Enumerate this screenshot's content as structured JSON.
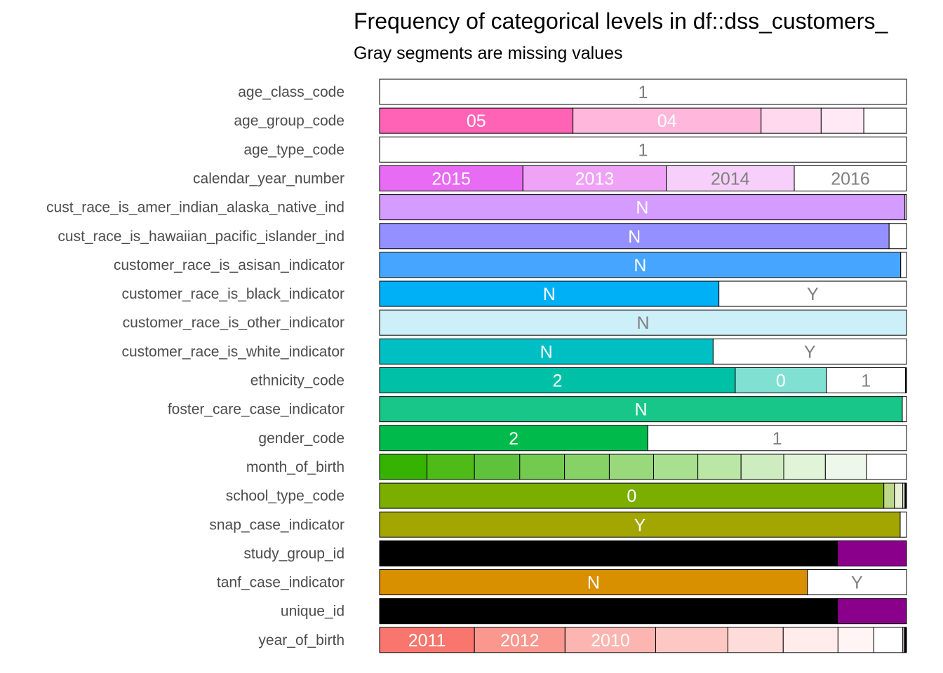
{
  "chart_data": {
    "type": "bar",
    "stacked": "proportional",
    "title": "Frequency of categorical levels in df::dss_customers_",
    "subtitle": "Gray segments are missing values",
    "rows": [
      {
        "name": "age_class_code",
        "segments": [
          {
            "level": "1",
            "value": 1.0,
            "color": "#ffffff",
            "label_color": "#7f7f7f"
          }
        ]
      },
      {
        "name": "age_group_code",
        "segments": [
          {
            "level": "05",
            "value": 0.367,
            "color": "#ff63b6",
            "label_color": "#ffffff"
          },
          {
            "level": "04",
            "value": 0.357,
            "color": "#ffb8dc",
            "label_color": "#ffffff"
          },
          {
            "level": "",
            "value": 0.114,
            "color": "#ffd9ee"
          },
          {
            "level": "",
            "value": 0.081,
            "color": "#ffe9f5"
          },
          {
            "level": "",
            "value": 0.081,
            "color": "#ffffff"
          }
        ]
      },
      {
        "name": "age_type_code",
        "segments": [
          {
            "level": "1",
            "value": 1.0,
            "color": "#ffffff",
            "label_color": "#7f7f7f"
          }
        ]
      },
      {
        "name": "calendar_year_number",
        "segments": [
          {
            "level": "2015",
            "value": 0.272,
            "color": "#e76bf3",
            "label_color": "#ffffff"
          },
          {
            "level": "2013",
            "value": 0.272,
            "color": "#efa3f6",
            "label_color": "#ffffff"
          },
          {
            "level": "2014",
            "value": 0.243,
            "color": "#f6d0fa",
            "label_color": "#7f7f7f"
          },
          {
            "level": "2016",
            "value": 0.213,
            "color": "#ffffff",
            "label_color": "#7f7f7f"
          }
        ]
      },
      {
        "name": "cust_race_is_amer_indian_alaska_native_ind",
        "segments": [
          {
            "level": "N",
            "value": 0.997,
            "color": "#d59cff",
            "label_color": "#ffffff"
          },
          {
            "level": "",
            "value": 0.003,
            "color": "#ffffff"
          }
        ]
      },
      {
        "name": "cust_race_is_hawaiian_pacific_islander_ind",
        "segments": [
          {
            "level": "N",
            "value": 0.967,
            "color": "#9590ff",
            "label_color": "#ffffff"
          },
          {
            "level": "",
            "value": 0.033,
            "color": "#ffffff"
          }
        ]
      },
      {
        "name": "customer_race_is_asisan_indicator",
        "segments": [
          {
            "level": "N",
            "value": 0.989,
            "color": "#45a5ff",
            "label_color": "#ffffff"
          },
          {
            "level": "",
            "value": 0.011,
            "color": "#ffffff"
          }
        ]
      },
      {
        "name": "customer_race_is_black_indicator",
        "segments": [
          {
            "level": "N",
            "value": 0.644,
            "color": "#00b0f6",
            "label_color": "#ffffff"
          },
          {
            "level": "Y",
            "value": 0.356,
            "color": "#ffffff",
            "label_color": "#7f7f7f"
          }
        ]
      },
      {
        "name": "customer_race_is_other_indicator",
        "segments": [
          {
            "level": "N",
            "value": 1.0,
            "color": "#cdeff8",
            "label_color": "#7f7f7f"
          }
        ]
      },
      {
        "name": "customer_race_is_white_indicator",
        "segments": [
          {
            "level": "N",
            "value": 0.633,
            "color": "#00bfc4",
            "label_color": "#ffffff"
          },
          {
            "level": "Y",
            "value": 0.367,
            "color": "#ffffff",
            "label_color": "#7f7f7f"
          }
        ]
      },
      {
        "name": "ethnicity_code",
        "segments": [
          {
            "level": "2",
            "value": 0.675,
            "color": "#00c0a5",
            "label_color": "#ffffff"
          },
          {
            "level": "0",
            "value": 0.173,
            "color": "#80e0d2",
            "label_color": "#ffffff"
          },
          {
            "level": "1",
            "value": 0.15,
            "color": "#ffffff",
            "label_color": "#7f7f7f"
          },
          {
            "level": "",
            "value": 0.002,
            "color": "#000000"
          }
        ]
      },
      {
        "name": "foster_care_case_indicator",
        "segments": [
          {
            "level": "N",
            "value": 0.992,
            "color": "#19c689",
            "label_color": "#ffffff"
          },
          {
            "level": "",
            "value": 0.008,
            "color": "#ffffff"
          }
        ]
      },
      {
        "name": "gender_code",
        "segments": [
          {
            "level": "2",
            "value": 0.509,
            "color": "#00ba4c",
            "label_color": "#ffffff"
          },
          {
            "level": "1",
            "value": 0.491,
            "color": "#ffffff",
            "label_color": "#7f7f7f"
          }
        ]
      },
      {
        "name": "month_of_birth",
        "segments": [
          {
            "level": "",
            "value": 0.09,
            "color": "#35b300"
          },
          {
            "level": "",
            "value": 0.09,
            "color": "#4fbb19"
          },
          {
            "level": "",
            "value": 0.086,
            "color": "#5ec23c"
          },
          {
            "level": "",
            "value": 0.085,
            "color": "#72ca4e"
          },
          {
            "level": "",
            "value": 0.085,
            "color": "#87d266"
          },
          {
            "level": "",
            "value": 0.084,
            "color": "#99d97b"
          },
          {
            "level": "",
            "value": 0.084,
            "color": "#a8e090"
          },
          {
            "level": "",
            "value": 0.082,
            "color": "#bae6a6"
          },
          {
            "level": "",
            "value": 0.081,
            "color": "#cdedc0"
          },
          {
            "level": "",
            "value": 0.079,
            "color": "#e0f4d7"
          },
          {
            "level": "",
            "value": 0.078,
            "color": "#eef8ea"
          },
          {
            "level": "",
            "value": 0.076,
            "color": "#ffffff"
          }
        ]
      },
      {
        "name": "school_type_code",
        "segments": [
          {
            "level": "0",
            "value": 0.957,
            "color": "#7cae00",
            "label_color": "#ffffff"
          },
          {
            "level": "",
            "value": 0.02,
            "color": "#bed88a"
          },
          {
            "level": "",
            "value": 0.016,
            "color": "#e7f0d2"
          },
          {
            "level": "",
            "value": 0.004,
            "color": "#ffffff"
          },
          {
            "level": "",
            "value": 0.003,
            "color": "#000000"
          }
        ]
      },
      {
        "name": "snap_case_indicator",
        "segments": [
          {
            "level": "Y",
            "value": 0.988,
            "color": "#a3a500",
            "label_color": "#ffffff"
          },
          {
            "level": "",
            "value": 0.012,
            "color": "#ffffff"
          }
        ]
      },
      {
        "name": "study_group_id",
        "segments": [
          {
            "level": "",
            "value": 0.869,
            "color": "#000000"
          },
          {
            "level": "",
            "value": 0.131,
            "color": "#8b008b"
          }
        ]
      },
      {
        "name": "tanf_case_indicator",
        "segments": [
          {
            "level": "N",
            "value": 0.812,
            "color": "#d89000",
            "label_color": "#ffffff"
          },
          {
            "level": "Y",
            "value": 0.188,
            "color": "#ffffff",
            "label_color": "#7f7f7f"
          }
        ]
      },
      {
        "name": "unique_id",
        "segments": [
          {
            "level": "",
            "value": 0.869,
            "color": "#000000"
          },
          {
            "level": "",
            "value": 0.131,
            "color": "#8b008b"
          }
        ]
      },
      {
        "name": "year_of_birth",
        "segments": [
          {
            "level": "2011",
            "value": 0.18,
            "color": "#f8766d",
            "label_color": "#ffffff"
          },
          {
            "level": "2012",
            "value": 0.172,
            "color": "#fa978f",
            "label_color": "#ffffff"
          },
          {
            "level": "2010",
            "value": 0.172,
            "color": "#fcb5b0",
            "label_color": "#ffffff"
          },
          {
            "level": "",
            "value": 0.137,
            "color": "#fdc8c4"
          },
          {
            "level": "",
            "value": 0.105,
            "color": "#fedcda"
          },
          {
            "level": "",
            "value": 0.104,
            "color": "#ffeceb"
          },
          {
            "level": "",
            "value": 0.068,
            "color": "#fff5f4"
          },
          {
            "level": "",
            "value": 0.055,
            "color": "#ffffff"
          },
          {
            "level": "",
            "value": 0.003,
            "color": "#fce4e2"
          },
          {
            "level": "",
            "value": 0.004,
            "color": "#000000"
          }
        ]
      }
    ]
  }
}
